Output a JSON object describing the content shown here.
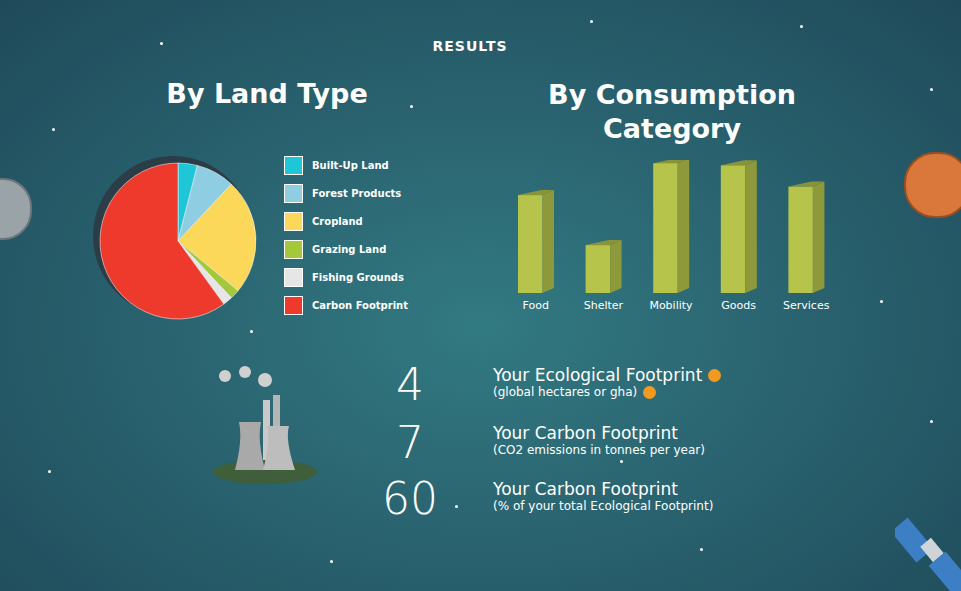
{
  "title": "RESULTS",
  "chart_data": [
    {
      "type": "pie",
      "title": "By Land Type",
      "categories": [
        "Built-Up Land",
        "Forest Products",
        "Cropland",
        "Grazing Land",
        "Fishing Grounds",
        "Carbon Footprint"
      ],
      "values": [
        4,
        8,
        24,
        2,
        2,
        60
      ],
      "colors": [
        "#1ec6d8",
        "#8fcde2",
        "#fcd85a",
        "#a3c93a",
        "#e6e6e6",
        "#ee3a2c"
      ],
      "legend": "right"
    },
    {
      "type": "bar",
      "title": "By Consumption Category",
      "categories": [
        "Food",
        "Shelter",
        "Mobility",
        "Goods",
        "Services"
      ],
      "values": [
        92,
        45,
        122,
        120,
        100
      ],
      "color": "#b6c44b",
      "ylim": [
        0,
        125
      ],
      "tick_labels": "x"
    }
  ],
  "results": [
    {
      "value": 4,
      "label": "Your Ecological Footprint",
      "sublabel": "(global hectares or gha)"
    },
    {
      "value": 7,
      "label": "Your Carbon Footprint",
      "sublabel": "(CO2 emissions in tonnes per year)"
    },
    {
      "value": 60,
      "label": "Your Carbon Footprint",
      "sublabel": "(% of your total Ecological Footprint)"
    }
  ]
}
